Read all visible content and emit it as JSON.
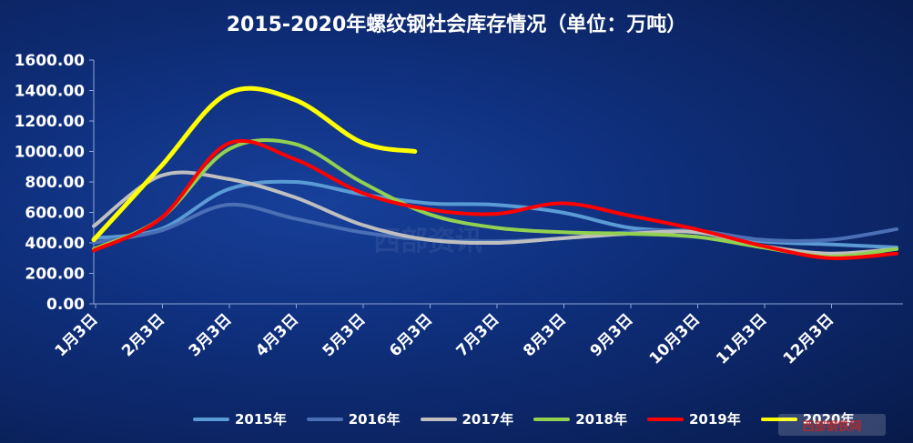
{
  "chart_data": {
    "type": "line",
    "title": "2015-2020年螺纹钢社会库存情况（单位：万吨）",
    "xlabel": "",
    "ylabel": "",
    "ylim": [
      0,
      1600
    ],
    "yticks": [
      "0.00",
      "200.00",
      "400.00",
      "600.00",
      "800.00",
      "1000.00",
      "1200.00",
      "1400.00",
      "1600.00"
    ],
    "categories": [
      "1月3日",
      "2月3日",
      "3月3日",
      "4月3日",
      "5月3日",
      "6月3日",
      "7月3日",
      "8月3日",
      "9月3日",
      "10月3日",
      "11月3日",
      "12月3日"
    ],
    "grid": false,
    "legend": "bottom",
    "series": [
      {
        "name": "2015年",
        "color": "#5b9bd5",
        "values": [
          430,
          490,
          750,
          800,
          720,
          660,
          650,
          600,
          500,
          470,
          410,
          390
        ],
        "x_end": 12.0,
        "y_end": 370
      },
      {
        "name": "2016年",
        "color": "#4a6fb5",
        "values": [
          400,
          480,
          650,
          560,
          470,
          420,
          410,
          430,
          470,
          480,
          420,
          420
        ],
        "x_end": 12.0,
        "y_end": 490
      },
      {
        "name": "2017年",
        "color": "#bfbfbf",
        "values": [
          510,
          840,
          820,
          700,
          520,
          420,
          400,
          430,
          460,
          470,
          380,
          330
        ],
        "x_end": 12.0,
        "y_end": 360
      },
      {
        "name": "2018年",
        "color": "#92d050",
        "values": [
          360,
          560,
          1010,
          1050,
          800,
          590,
          500,
          470,
          460,
          440,
          370,
          310
        ],
        "x_end": 12.0,
        "y_end": 360
      },
      {
        "name": "2019年",
        "color": "#ff0000",
        "values": [
          350,
          560,
          1050,
          950,
          730,
          620,
          590,
          660,
          580,
          490,
          380,
          300
        ],
        "x_end": 12.0,
        "y_end": 330
      },
      {
        "name": "2020年",
        "color": "#ffff00",
        "values": [
          420,
          900,
          1380,
          1340,
          1060,
          null,
          null,
          null,
          null,
          null,
          null,
          null
        ],
        "x_end": 4.8,
        "y_end": 1000
      }
    ]
  },
  "watermark": {
    "text": "西部钢铁网",
    "faint_text": "西部资讯"
  }
}
